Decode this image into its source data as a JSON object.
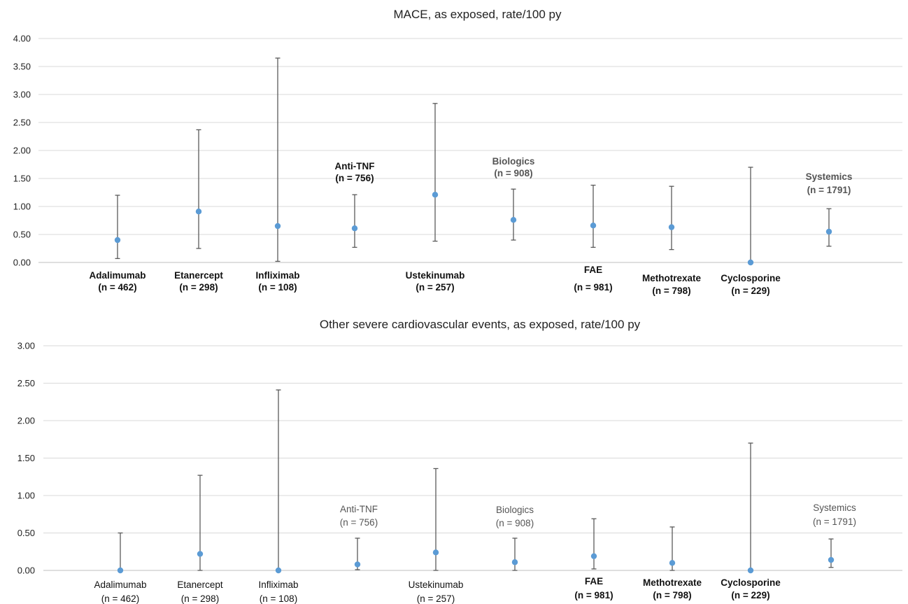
{
  "chart_data": [
    {
      "type": "scatter",
      "title": "MACE, as exposed, rate/100 py",
      "ylim": [
        0,
        4
      ],
      "yticks": [
        "0.00",
        "0.50",
        "1.00",
        "1.50",
        "2.00",
        "2.50",
        "3.00",
        "3.50",
        "4.00"
      ],
      "grid": true,
      "points": [
        {
          "label": "Adalimumab",
          "n": "(n = 462)",
          "rate": 0.4,
          "lower": 0.07,
          "upper": 1.2
        },
        {
          "label": "Etanercept",
          "n": "(n = 298)",
          "rate": 0.91,
          "lower": 0.25,
          "upper": 2.37
        },
        {
          "label": "Infliximab",
          "n": "(n = 108)",
          "rate": 0.65,
          "lower": 0.02,
          "upper": 3.65
        },
        {
          "label": "Anti-TNF",
          "n": "(n = 756)",
          "rate": 0.61,
          "lower": 0.27,
          "upper": 1.21
        },
        {
          "label": "Ustekinumab",
          "n": "(n = 257)",
          "rate": 1.21,
          "lower": 0.38,
          "upper": 2.84
        },
        {
          "label": "Biologics",
          "n": "(n = 908)",
          "rate": 0.76,
          "lower": 0.4,
          "upper": 1.31
        },
        {
          "label": "FAE",
          "n": "(n = 981)",
          "rate": 0.66,
          "lower": 0.27,
          "upper": 1.38
        },
        {
          "label": "Methotrexate",
          "n": "(n = 798)",
          "rate": 0.63,
          "lower": 0.23,
          "upper": 1.36
        },
        {
          "label": "Cyclosporine",
          "n": "(n = 229)",
          "rate": 0.0,
          "lower": 0.0,
          "upper": 1.7
        },
        {
          "label": "Systemics",
          "n": "(n = 1791)",
          "rate": 0.55,
          "lower": 0.29,
          "upper": 0.96
        }
      ]
    },
    {
      "type": "scatter",
      "title": "Other severe cardiovascular events, as exposed, rate/100 py",
      "ylim": [
        0,
        3
      ],
      "yticks": [
        "0.00",
        "0.50",
        "1.00",
        "1.50",
        "2.00",
        "2.50",
        "3.00"
      ],
      "grid": true,
      "points": [
        {
          "label": "Adalimumab",
          "n": "(n = 462)",
          "rate": 0.0,
          "lower": 0.0,
          "upper": 0.5
        },
        {
          "label": "Etanercept",
          "n": "(n = 298)",
          "rate": 0.22,
          "lower": 0.0,
          "upper": 1.27
        },
        {
          "label": "Infliximab",
          "n": "(n = 108)",
          "rate": 0.0,
          "lower": 0.0,
          "upper": 2.41
        },
        {
          "label": "Anti-TNF",
          "n": "(n = 756)",
          "rate": 0.08,
          "lower": 0.01,
          "upper": 0.43
        },
        {
          "label": "Ustekinumab",
          "n": "(n = 257)",
          "rate": 0.24,
          "lower": 0.0,
          "upper": 1.36
        },
        {
          "label": "Biologics",
          "n": "(n = 908)",
          "rate": 0.11,
          "lower": 0.0,
          "upper": 0.43
        },
        {
          "label": "FAE",
          "n": "(n = 981)",
          "rate": 0.19,
          "lower": 0.02,
          "upper": 0.69
        },
        {
          "label": "Methotrexate",
          "n": "(n = 798)",
          "rate": 0.1,
          "lower": 0.0,
          "upper": 0.58
        },
        {
          "label": "Cyclosporine",
          "n": "(n = 229)",
          "rate": 0.0,
          "lower": 0.0,
          "upper": 1.7
        },
        {
          "label": "Systemics",
          "n": "(n = 1791)",
          "rate": 0.14,
          "lower": 0.04,
          "upper": 0.42
        }
      ]
    }
  ]
}
